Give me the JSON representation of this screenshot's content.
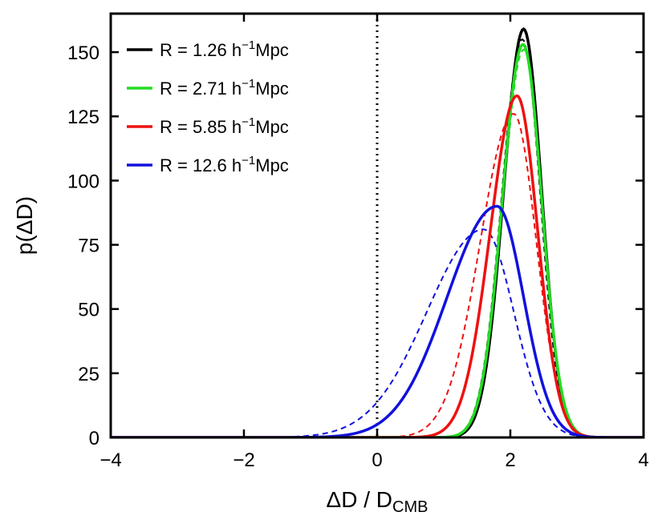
{
  "chart_data": {
    "type": "line",
    "title": "",
    "xlabel": {
      "main": "ΔD / D",
      "sub": "CMB"
    },
    "ylabel": "p(ΔD)",
    "xlim": [
      -4,
      4
    ],
    "ylim": [
      0,
      165
    ],
    "x_ticks": [
      -4,
      -2,
      0,
      2,
      4
    ],
    "x_tick_labels": [
      "−4",
      "−2",
      "0",
      "2",
      "4"
    ],
    "y_ticks": [
      0,
      25,
      50,
      75,
      100,
      125,
      150
    ],
    "y_tick_labels": [
      "0",
      "25",
      "50",
      "75",
      "100",
      "125",
      "150"
    ],
    "reference_line": {
      "x": 0,
      "style": "dotted",
      "color": "#000000"
    },
    "legend": {
      "position": "top-left"
    },
    "series": [
      {
        "name": "R = 1.26 h⁻¹Mpc",
        "legend_prefix": "R = 1.26 h",
        "legend_sup": "−1",
        "legend_suffix": "Mpc",
        "color": "#000000",
        "solid": {
          "peak": 159,
          "mode": 2.2,
          "sigma_left": 0.3,
          "sigma_right": 0.27
        },
        "dashed": {
          "peak": 155,
          "mode": 2.18,
          "sigma_left": 0.31,
          "sigma_right": 0.27
        }
      },
      {
        "name": "R = 2.71 h⁻¹Mpc",
        "legend_prefix": "R = 2.71 h",
        "legend_sup": "−1",
        "legend_suffix": "Mpc",
        "color": "#22dd22",
        "solid": {
          "peak": 153,
          "mode": 2.19,
          "sigma_left": 0.31,
          "sigma_right": 0.28
        },
        "dashed": {
          "peak": 151,
          "mode": 2.2,
          "sigma_left": 0.31,
          "sigma_right": 0.28
        }
      },
      {
        "name": "R = 5.85 h⁻¹Mpc",
        "legend_prefix": "R = 5.85 h",
        "legend_sup": "−1",
        "legend_suffix": "Mpc",
        "color": "#ee1111",
        "solid": {
          "peak": 133,
          "mode": 2.1,
          "sigma_left": 0.4,
          "sigma_right": 0.31
        },
        "dashed": {
          "peak": 126,
          "mode": 2.05,
          "sigma_left": 0.5,
          "sigma_right": 0.34
        }
      },
      {
        "name": "R = 12.6 h⁻¹Mpc",
        "legend_prefix": "R = 12.6 h",
        "legend_sup": "−1",
        "legend_suffix": "Mpc",
        "color": "#1111dd",
        "solid": {
          "peak": 90,
          "mode": 1.8,
          "sigma_left": 0.75,
          "sigma_right": 0.4
        },
        "dashed": {
          "peak": 81,
          "mode": 1.6,
          "sigma_left": 0.85,
          "sigma_right": 0.45
        }
      }
    ]
  }
}
